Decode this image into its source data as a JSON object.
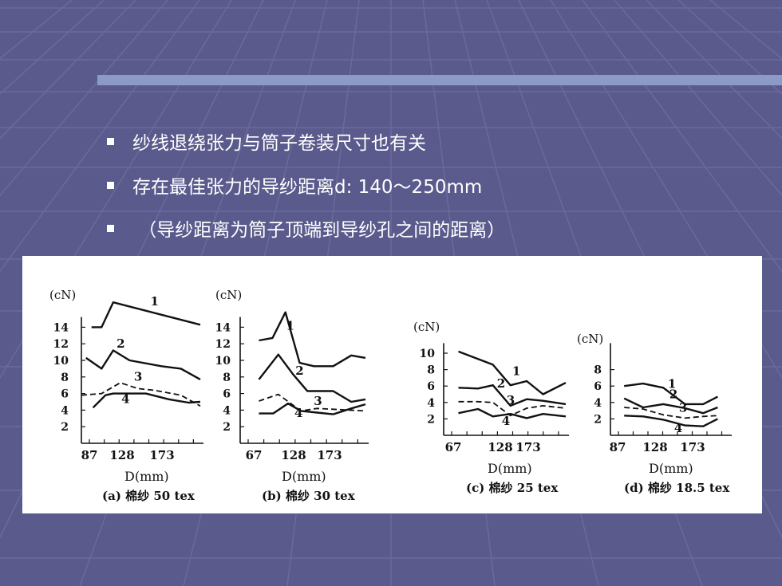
{
  "slide": {
    "bullets": [
      "纱线退绕张力与筒子卷装尺寸也有关",
      "存在最佳张力的导纱距离d:   140～250mm",
      " （导纱距离为筒子顶端到导纱孔之间的距离）"
    ]
  },
  "chart_data": [
    {
      "type": "line",
      "caption": "(a) 棉纱 50 tex",
      "ylabel": "(cN)",
      "xlabel": "D(mm)",
      "xlim": [
        87,
        240
      ],
      "ylim": [
        0,
        16
      ],
      "x_ticks": [
        "87",
        "128",
        "173"
      ],
      "y_ticks": [
        "14",
        "12",
        "10",
        "8",
        "6",
        "4",
        "2"
      ],
      "series": [
        {
          "name": "1",
          "dashed": false,
          "x": [
            100,
            113,
            128,
            240
          ],
          "y": [
            14,
            14,
            17,
            14.3
          ]
        },
        {
          "name": "2",
          "dashed": false,
          "x": [
            93,
            113,
            128,
            149,
            190,
            215,
            240
          ],
          "y": [
            10.3,
            9,
            11.2,
            10,
            9.3,
            9,
            7.7
          ]
        },
        {
          "name": "3",
          "dashed": true,
          "x": [
            87,
            113,
            137,
            160,
            180,
            215,
            240
          ],
          "y": [
            5.8,
            6,
            7.3,
            6.6,
            6.4,
            5.8,
            4.5
          ]
        },
        {
          "name": "4",
          "dashed": false,
          "x": [
            102,
            118,
            128,
            149,
            170,
            200,
            225,
            240
          ],
          "y": [
            4.3,
            5.8,
            6,
            6,
            6,
            5.3,
            4.9,
            5
          ]
        }
      ]
    },
    {
      "type": "line",
      "caption": "(b) 棉纱 30 tex",
      "ylabel": "(cN)",
      "xlabel": "D(mm)",
      "xlim": [
        67,
        240
      ],
      "ylim": [
        0,
        16
      ],
      "x_ticks": [
        "67",
        "128",
        "173"
      ],
      "y_ticks": [
        "14",
        "12",
        "10",
        "8",
        "6",
        "4",
        "2"
      ],
      "series": [
        {
          "name": "1",
          "dashed": false,
          "x": [
            75,
            96,
            116,
            138,
            160,
            190,
            218,
            240
          ],
          "y": [
            12.4,
            12.7,
            15.8,
            9.7,
            9.3,
            9.3,
            10.6,
            10.3
          ]
        },
        {
          "name": "2",
          "dashed": false,
          "x": [
            75,
            105,
            128,
            150,
            190,
            218,
            240
          ],
          "y": [
            7.7,
            10.7,
            8.3,
            6.3,
            6.3,
            5,
            5.3
          ]
        },
        {
          "name": "3",
          "dashed": true,
          "x": [
            75,
            105,
            140,
            165,
            240
          ],
          "y": [
            5.1,
            5.9,
            3.9,
            4.2,
            3.9
          ]
        },
        {
          "name": "4",
          "dashed": false,
          "x": [
            75,
            97,
            120,
            140,
            165,
            190,
            218,
            240
          ],
          "y": [
            3.6,
            3.6,
            4.8,
            3.9,
            3.7,
            3.5,
            4.2,
            4.7
          ]
        }
      ]
    },
    {
      "type": "line",
      "caption": "(c) 棉纱 25 tex",
      "ylabel": "(cN)",
      "xlabel": "D(mm)",
      "xlim": [
        67,
        240
      ],
      "ylim": [
        0,
        12
      ],
      "x_ticks": [
        "67",
        "128",
        "173"
      ],
      "y_ticks": [
        "10",
        "8",
        "6",
        "4",
        "2"
      ],
      "series": [
        {
          "name": "1",
          "dashed": false,
          "x": [
            75,
            128,
            155,
            180,
            205,
            240
          ],
          "y": [
            10.2,
            8.6,
            6.1,
            6.6,
            5,
            6.4
          ]
        },
        {
          "name": "2",
          "dashed": false,
          "x": [
            75,
            105,
            128,
            155,
            180,
            205,
            240
          ],
          "y": [
            5.8,
            5.7,
            6.1,
            3.6,
            4.4,
            4.2,
            3.8
          ]
        },
        {
          "name": "3",
          "dashed": true,
          "x": [
            75,
            105,
            128,
            155,
            180,
            205,
            240
          ],
          "y": [
            4.1,
            4.1,
            4,
            2.4,
            3.3,
            3.6,
            3.3
          ]
        },
        {
          "name": "4",
          "dashed": false,
          "x": [
            75,
            105,
            128,
            155,
            180,
            205,
            240
          ],
          "y": [
            2.7,
            3.2,
            2.3,
            2.6,
            2.1,
            2.6,
            2.3
          ]
        }
      ]
    },
    {
      "type": "line",
      "caption": "(d) 棉纱 18.5 tex",
      "ylabel": "(cN)",
      "xlabel": "D(mm)",
      "xlim": [
        87,
        240
      ],
      "ylim": [
        0,
        12
      ],
      "x_ticks": [
        "87",
        "128",
        "173"
      ],
      "y_ticks": [
        "8",
        "6",
        "4",
        "2"
      ],
      "series": [
        {
          "name": "1",
          "dashed": false,
          "x": [
            96,
            122,
            150,
            180,
            205,
            225
          ],
          "y": [
            6,
            6.3,
            5.8,
            3.8,
            3.8,
            4.7
          ]
        },
        {
          "name": "2",
          "dashed": false,
          "x": [
            96,
            122,
            150,
            180,
            205,
            225
          ],
          "y": [
            4.5,
            3.4,
            3.8,
            3.3,
            2.7,
            3.4
          ]
        },
        {
          "name": "3",
          "dashed": true,
          "x": [
            96,
            122,
            150,
            180,
            205,
            225
          ],
          "y": [
            3.4,
            3.2,
            2.5,
            2.1,
            2.3,
            2.4
          ]
        },
        {
          "name": "4",
          "dashed": false,
          "x": [
            96,
            122,
            150,
            180,
            205,
            225
          ],
          "y": [
            2.4,
            2.3,
            1.9,
            1.2,
            1.1,
            2
          ]
        }
      ]
    }
  ]
}
